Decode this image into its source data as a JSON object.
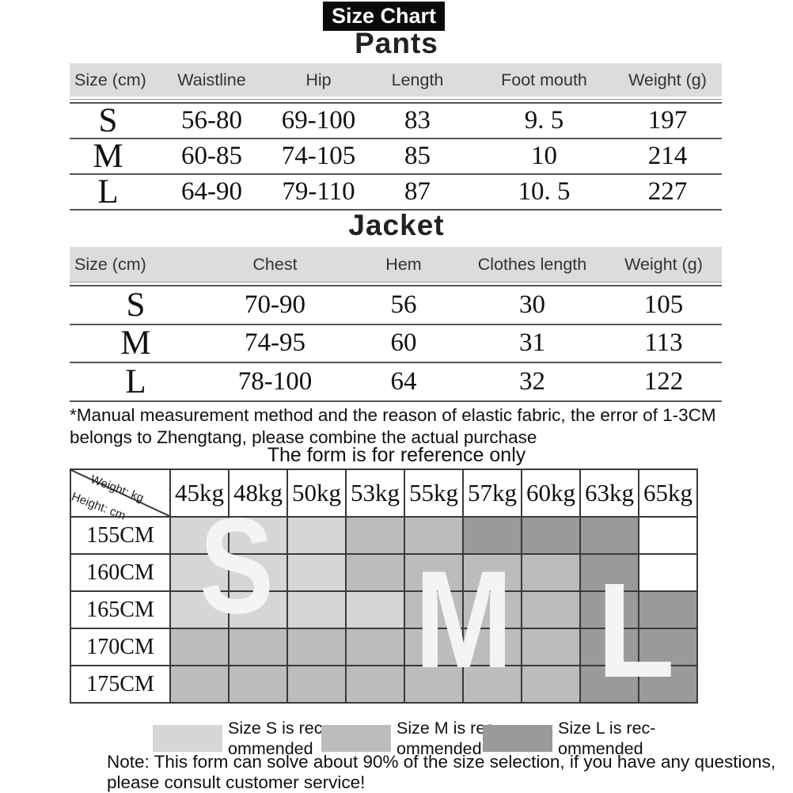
{
  "title": "Size Chart",
  "colors": {
    "title_bg": "#0a0a0a",
    "header_band": "#dcdcdc",
    "cell_s": "#d6d6d6",
    "cell_m": "#bcbcbc",
    "cell_l": "#9a9a9a",
    "cell_empty": "#ffffff"
  },
  "pants": {
    "heading": "Pants",
    "columns": [
      "Size (cm)",
      "Waistline",
      "Hip",
      "Length",
      "Foot mouth",
      "Weight (g)"
    ],
    "rows": [
      [
        "S",
        "56-80",
        "69-100",
        "83",
        "9. 5",
        "197"
      ],
      [
        "M",
        "60-85",
        "74-105",
        "85",
        "10",
        "214"
      ],
      [
        "L",
        "64-90",
        "79-110",
        "87",
        "10. 5",
        "227"
      ]
    ]
  },
  "jacket": {
    "heading": "Jacket",
    "columns": [
      "Size (cm)",
      "Chest",
      "Hem",
      "Clothes length",
      "Weight (g)"
    ],
    "rows": [
      [
        "S",
        "70-90",
        "56",
        "30",
        "105"
      ],
      [
        "M",
        "74-95",
        "60",
        "31",
        "113"
      ],
      [
        "L",
        "78-100",
        "64",
        "32",
        "122"
      ]
    ]
  },
  "notes": {
    "measurement_line1": "*Manual measurement method and the reason of elastic fabric, the error of 1-3CM",
    "measurement_line2": "belongs to Zhengtang, please combine the actual purchase",
    "reference": "The form is for reference only",
    "service_line1": "Note: This form can solve about 90% of the size selection, if you have any questions,",
    "service_line2": "please consult customer service!"
  },
  "matrix": {
    "corner_top": "Weight: kg",
    "corner_bottom": "Height: cm",
    "weights": [
      "45kg",
      "48kg",
      "50kg",
      "53kg",
      "55kg",
      "57kg",
      "60kg",
      "63kg",
      "65kg"
    ],
    "heights": [
      "155CM",
      "160CM",
      "165CM",
      "170CM",
      "175CM"
    ],
    "cells": [
      [
        "S",
        "S",
        "S",
        "M",
        "M",
        "L",
        "L",
        "L",
        ""
      ],
      [
        "S",
        "S",
        "S",
        "M",
        "M",
        "M",
        "M",
        "L",
        ""
      ],
      [
        "S",
        "S",
        "S",
        "S",
        "M",
        "M",
        "M",
        "L",
        "L"
      ],
      [
        "M",
        "M",
        "M",
        "M",
        "M",
        "M",
        "M",
        "L",
        "L"
      ],
      [
        "M",
        "M",
        "M",
        "M",
        "M",
        "M",
        "M",
        "L",
        "L"
      ]
    ],
    "overlay_letters": [
      "S",
      "M",
      "L"
    ]
  },
  "legend": [
    {
      "swatch_color": "#d6d6d6",
      "line1": "Size S is rec-",
      "line2": "ommended"
    },
    {
      "swatch_color": "#bcbcbc",
      "line1": "Size M is rec-",
      "line2": "ommended"
    },
    {
      "swatch_color": "#9a9a9a",
      "line1": "Size L is rec-",
      "line2": "ommended"
    }
  ]
}
